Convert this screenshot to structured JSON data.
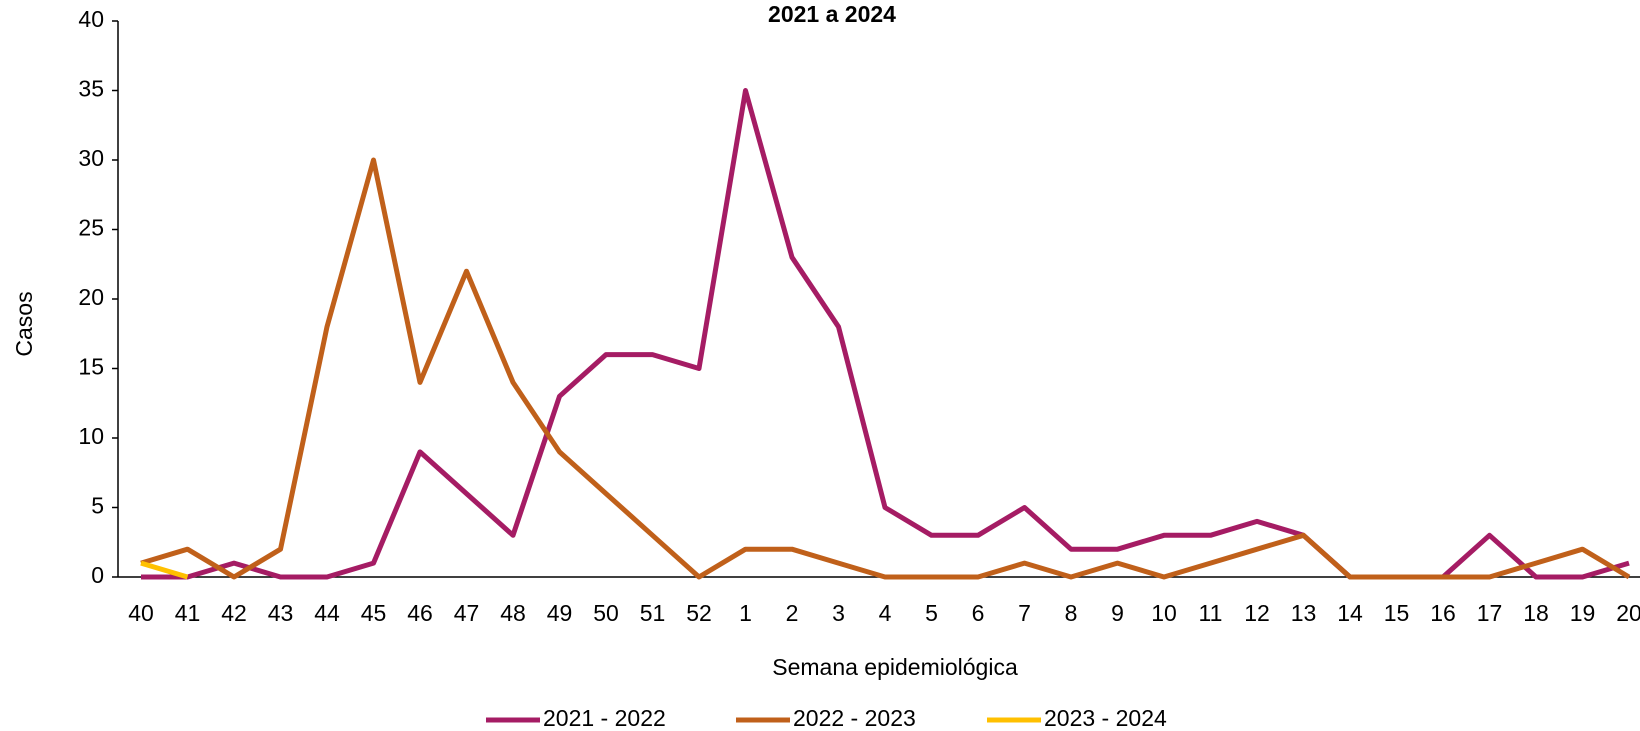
{
  "chart_data": {
    "type": "line",
    "title": "2021 a 2024",
    "x_label": "Semana epidemiológica",
    "y_label": "Casos",
    "categories": [
      "40",
      "41",
      "42",
      "43",
      "44",
      "45",
      "46",
      "47",
      "48",
      "49",
      "50",
      "51",
      "52",
      "1",
      "2",
      "3",
      "4",
      "5",
      "6",
      "7",
      "8",
      "9",
      "10",
      "11",
      "12",
      "13",
      "14",
      "15",
      "16",
      "17",
      "18",
      "19",
      "20"
    ],
    "series": [
      {
        "name": "2021 - 2022",
        "color": "#a51c64",
        "values": [
          0,
          0,
          1,
          0,
          0,
          1,
          9,
          6,
          3,
          13,
          16,
          16,
          15,
          35,
          23,
          18,
          5,
          3,
          3,
          5,
          2,
          2,
          3,
          3,
          4,
          3,
          0,
          0,
          0,
          3,
          0,
          0,
          1
        ]
      },
      {
        "name": "2022 - 2023",
        "color": "#c0601a",
        "values": [
          1,
          2,
          0,
          2,
          18,
          30,
          14,
          22,
          14,
          9,
          6,
          3,
          0,
          2,
          2,
          1,
          0,
          0,
          0,
          1,
          0,
          1,
          0,
          1,
          2,
          3,
          0,
          0,
          0,
          0,
          1,
          2,
          0
        ]
      },
      {
        "name": "2023 - 2024",
        "color": "#ffc000",
        "values": [
          1,
          0,
          null,
          null,
          null,
          null,
          null,
          null,
          null,
          null,
          null,
          null,
          null,
          null,
          null,
          null,
          null,
          null,
          null,
          null,
          null,
          null,
          null,
          null,
          null,
          null,
          null,
          null,
          null,
          null,
          null,
          null,
          null
        ]
      }
    ],
    "ylim": [
      0,
      40
    ],
    "yticks": [
      0,
      5,
      10,
      15,
      20,
      25,
      30,
      35,
      40
    ],
    "grid": false,
    "legend": "bottom"
  }
}
